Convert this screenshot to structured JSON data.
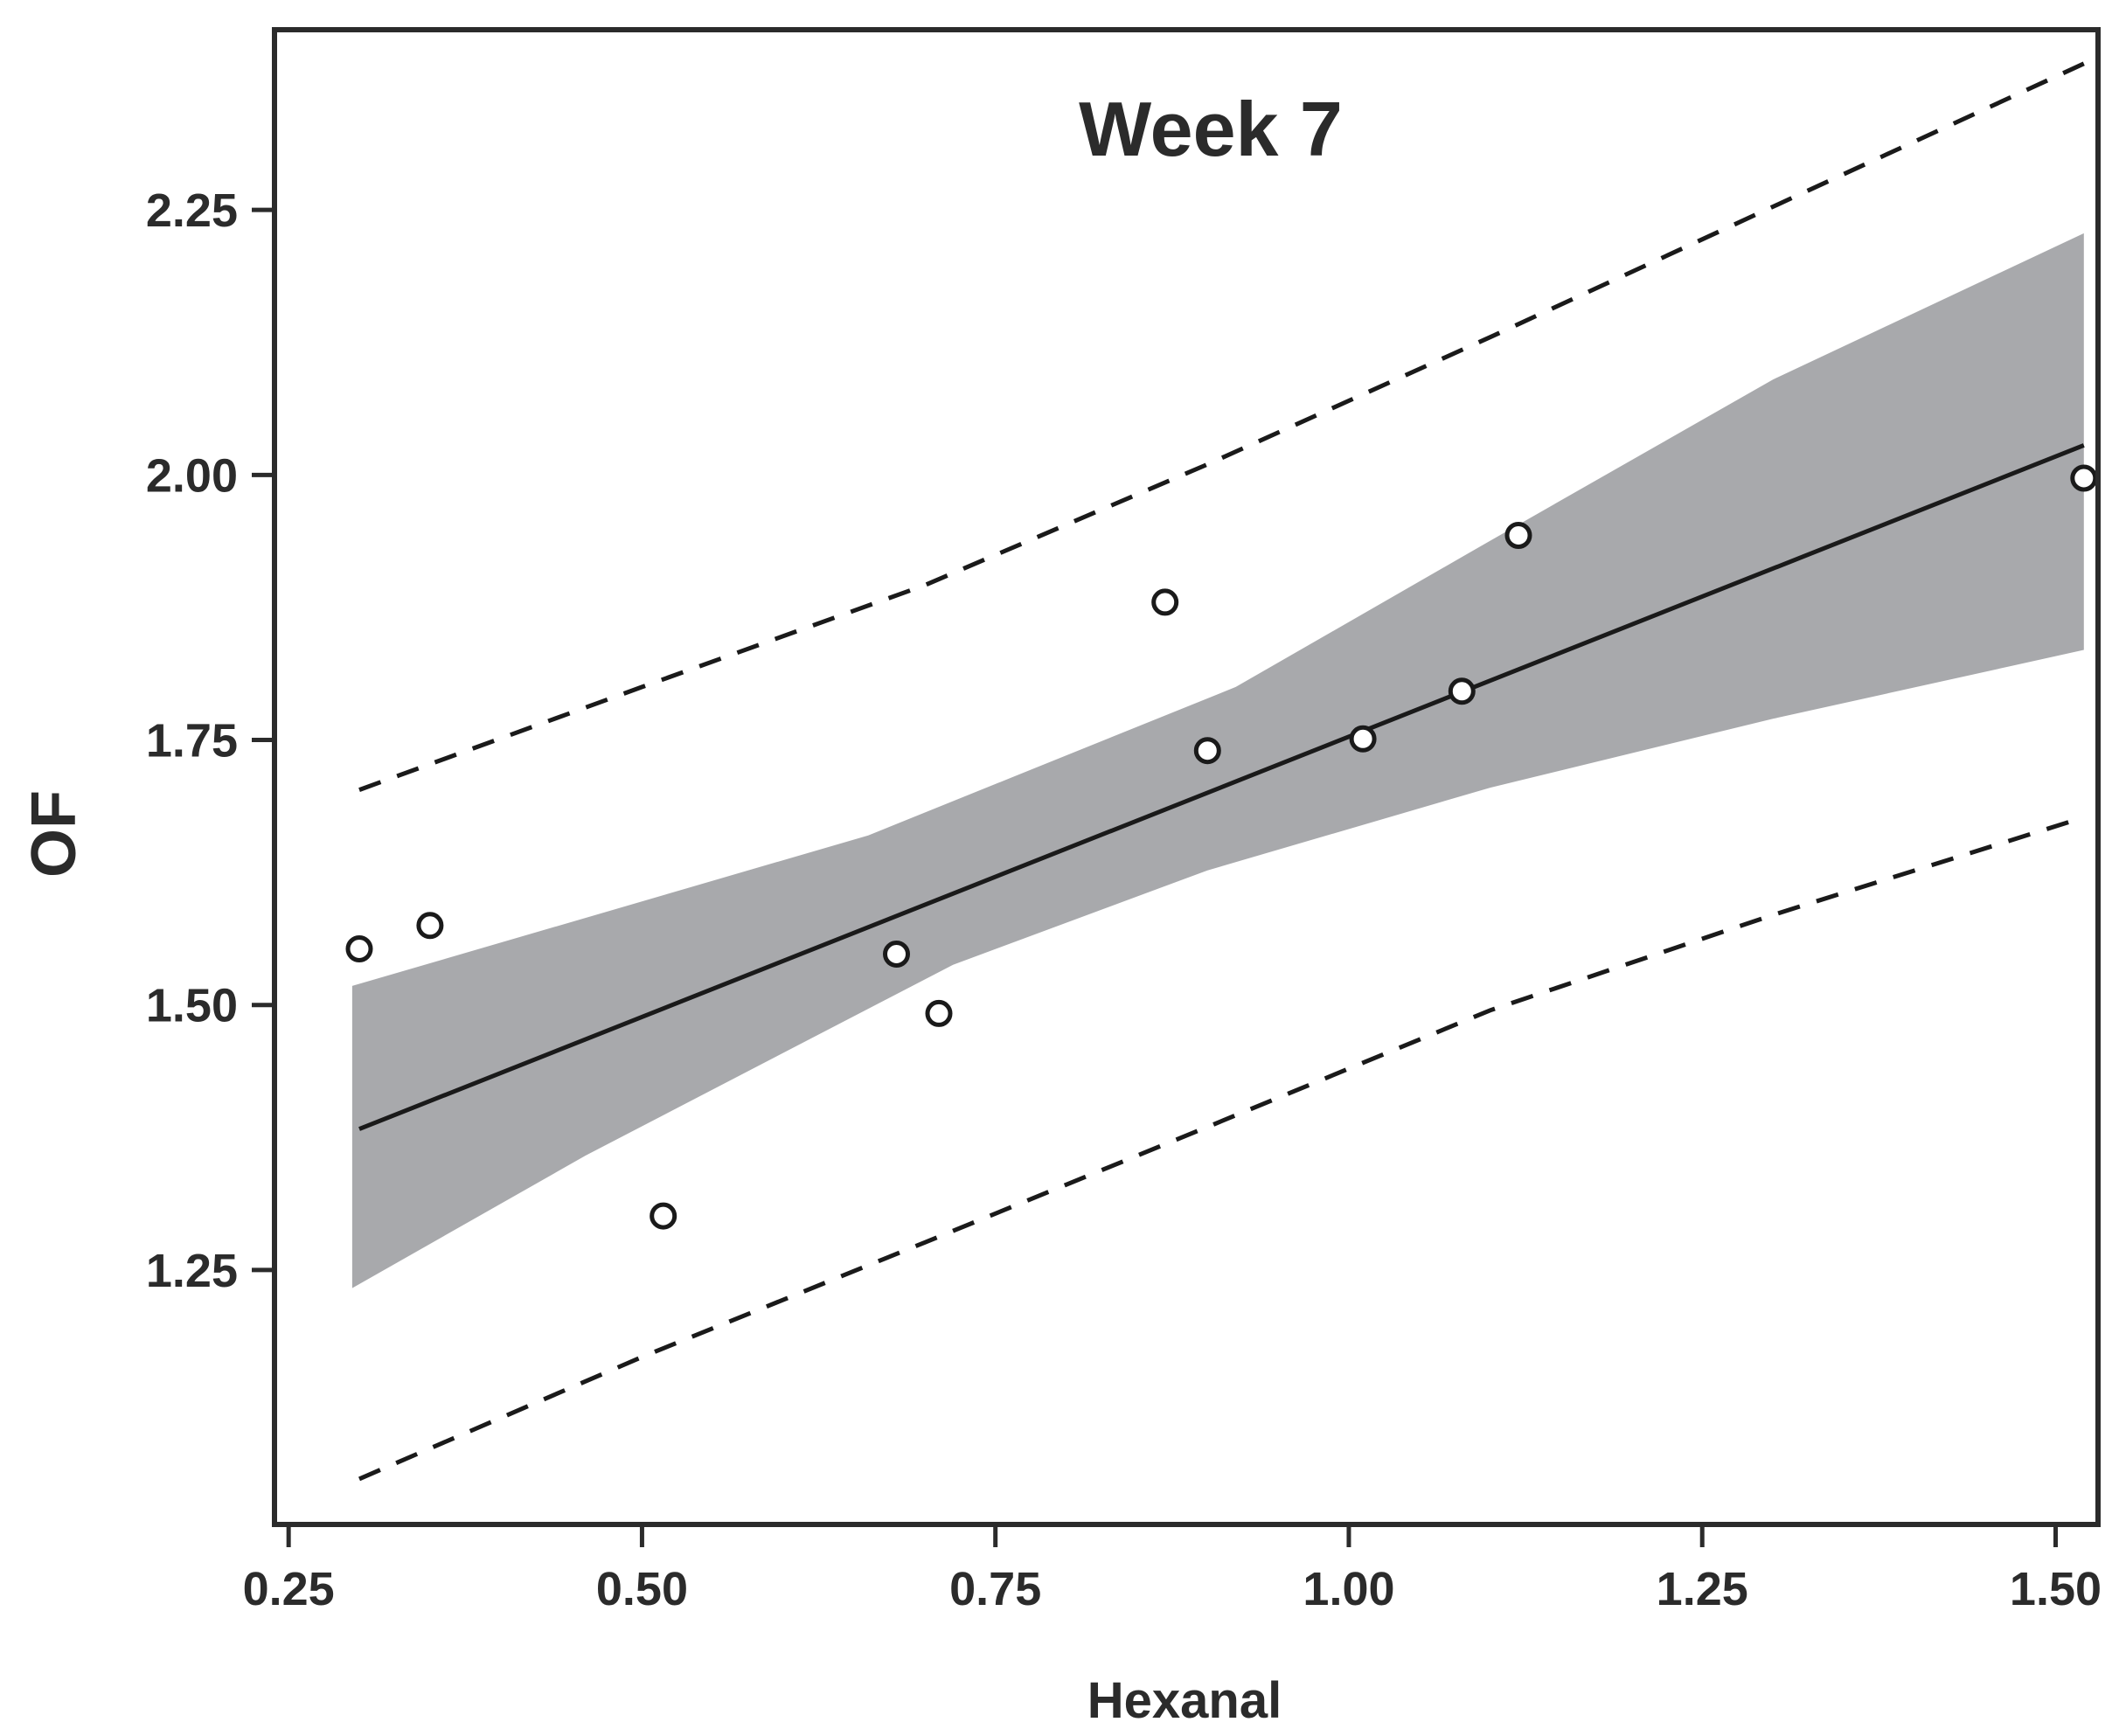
{
  "chart_data": {
    "type": "scatter",
    "title": "Week 7",
    "xlabel": "Hexanal",
    "ylabel": "OF",
    "xlim": [
      0.24,
      1.53
    ],
    "ylim": [
      1.01,
      2.42
    ],
    "x_ticks": [
      0.25,
      0.5,
      0.75,
      1.0,
      1.25,
      1.5
    ],
    "x_tick_labels": [
      "0.25",
      "0.50",
      "0.75",
      "1.00",
      "1.25",
      "1.50"
    ],
    "y_ticks": [
      1.25,
      1.5,
      1.75,
      2.0,
      2.25
    ],
    "y_tick_labels": [
      "1.25",
      "1.50",
      "1.75",
      "2.00",
      "2.25"
    ],
    "grid": false,
    "series": [
      {
        "name": "observations",
        "kind": "points",
        "points": [
          {
            "x": 0.3,
            "y": 1.553
          },
          {
            "x": 0.35,
            "y": 1.575
          },
          {
            "x": 0.515,
            "y": 1.301
          },
          {
            "x": 0.68,
            "y": 1.548
          },
          {
            "x": 0.71,
            "y": 1.492
          },
          {
            "x": 0.87,
            "y": 1.88
          },
          {
            "x": 0.9,
            "y": 1.74
          },
          {
            "x": 1.01,
            "y": 1.751
          },
          {
            "x": 1.08,
            "y": 1.796
          },
          {
            "x": 1.12,
            "y": 1.943
          },
          {
            "x": 1.52,
            "y": 1.997
          }
        ]
      },
      {
        "name": "fitted regression line",
        "kind": "line",
        "points": [
          {
            "x": 0.3,
            "y": 1.383
          },
          {
            "x": 1.52,
            "y": 2.028
          }
        ]
      },
      {
        "name": "confidence band",
        "kind": "band",
        "upper": [
          {
            "x": 0.295,
            "y": 1.518
          },
          {
            "x": 0.66,
            "y": 1.66
          },
          {
            "x": 0.92,
            "y": 1.8
          },
          {
            "x": 1.1,
            "y": 1.938
          },
          {
            "x": 1.3,
            "y": 2.09
          },
          {
            "x": 1.52,
            "y": 2.228
          }
        ],
        "lower": [
          {
            "x": 0.295,
            "y": 1.233
          },
          {
            "x": 0.46,
            "y": 1.358
          },
          {
            "x": 0.72,
            "y": 1.538
          },
          {
            "x": 0.9,
            "y": 1.627
          },
          {
            "x": 1.1,
            "y": 1.705
          },
          {
            "x": 1.3,
            "y": 1.77
          },
          {
            "x": 1.52,
            "y": 1.835
          }
        ]
      },
      {
        "name": "upper prediction interval",
        "kind": "dashed",
        "points": [
          {
            "x": 0.3,
            "y": 1.703
          },
          {
            "x": 0.5,
            "y": 1.8
          },
          {
            "x": 0.7,
            "y": 1.896
          },
          {
            "x": 0.9,
            "y": 2.01
          },
          {
            "x": 1.1,
            "y": 2.13
          },
          {
            "x": 1.3,
            "y": 2.253
          },
          {
            "x": 1.52,
            "y": 2.388
          }
        ]
      },
      {
        "name": "lower prediction interval",
        "kind": "dashed",
        "points": [
          {
            "x": 0.3,
            "y": 1.053
          },
          {
            "x": 0.5,
            "y": 1.168
          },
          {
            "x": 0.7,
            "y": 1.276
          },
          {
            "x": 0.9,
            "y": 1.385
          },
          {
            "x": 1.1,
            "y": 1.495
          },
          {
            "x": 1.3,
            "y": 1.585
          },
          {
            "x": 1.52,
            "y": 1.677
          }
        ]
      }
    ],
    "colors": {
      "band": "#a8a9ac",
      "line": "#1a1a1a",
      "frame": "#2b2b2b",
      "point_stroke": "#1a1a1a",
      "point_fill": "#ffffff"
    }
  }
}
